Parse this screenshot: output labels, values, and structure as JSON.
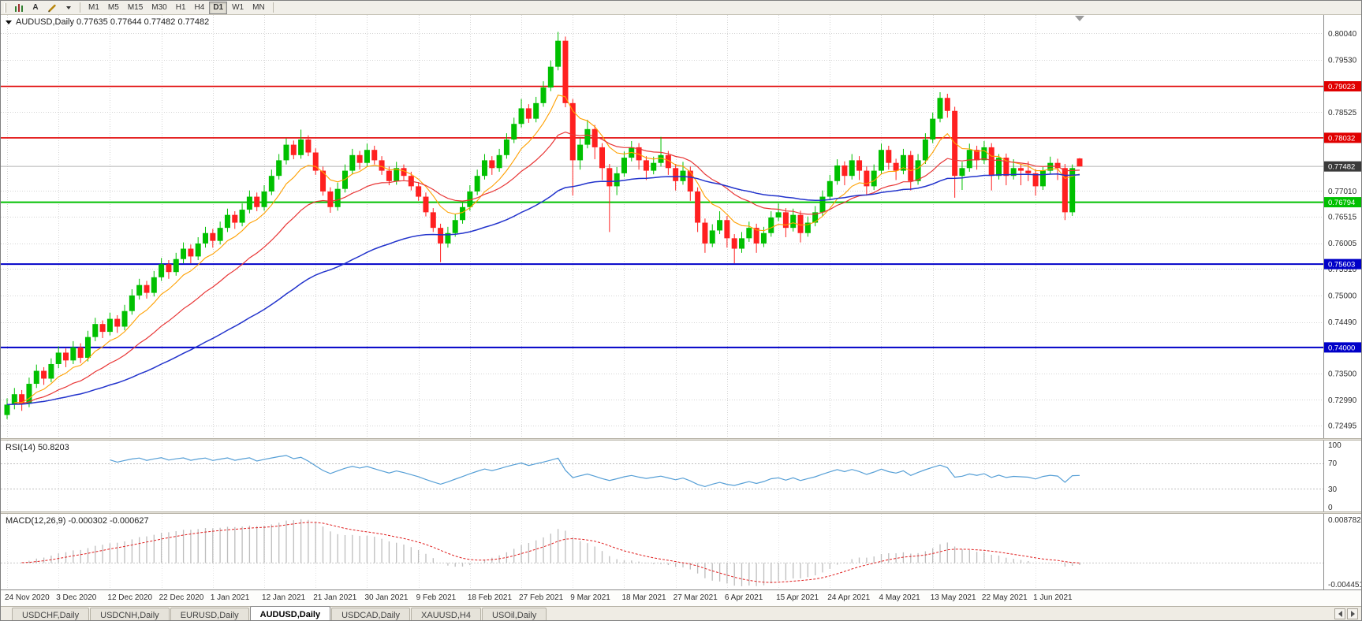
{
  "toolbar": {
    "text_tool_label": "A",
    "timeframes": [
      "M1",
      "M5",
      "M15",
      "M30",
      "H1",
      "H4",
      "D1",
      "W1",
      "MN"
    ],
    "active_timeframe": "D1",
    "icons": [
      "bar-chart-icon",
      "pencil-icon",
      "caret-down-icon"
    ]
  },
  "chart": {
    "symbol_line": "AUDUSD,Daily 0.77635 0.77644 0.77482 0.77482",
    "grid_labels": [
      "0.80040",
      "0.79530",
      "0.78525",
      "0.77010",
      "0.76515",
      "0.76005",
      "0.75510",
      "0.75000",
      "0.74490",
      "0.73500",
      "0.72990",
      "0.72495"
    ],
    "levels": [
      {
        "name": "resistance-line-upper",
        "label": "0.79023",
        "value": 0.79023,
        "color": "#e00000",
        "type": "resistance"
      },
      {
        "name": "resistance-line-lower",
        "label": "0.78032",
        "value": 0.78032,
        "color": "#e00000",
        "type": "resistance"
      },
      {
        "name": "current-price-line",
        "label": "0.77482",
        "value": 0.77482,
        "color": "#3a3a3a",
        "type": "price"
      },
      {
        "name": "support-line-green",
        "label": "0.76794",
        "value": 0.76794,
        "color": "#00c000",
        "type": "support"
      },
      {
        "name": "support-line-blue-upper",
        "label": "0.75603",
        "value": 0.75603,
        "color": "#0000c8",
        "type": "support"
      },
      {
        "name": "support-line-blue-lower",
        "label": "0.74000",
        "value": 0.74,
        "color": "#0000c8",
        "type": "support"
      }
    ],
    "colors": {
      "bull": "#00c000",
      "bear": "#ff2020",
      "ma_fast": "#ffa000",
      "ma_mid": "#e83535",
      "ma_slow": "#2233cc",
      "grid": "#d4d4d4"
    }
  },
  "chart_data": {
    "type": "candlestick",
    "title": "AUDUSD,Daily",
    "price_range": [
      0.723,
      0.8035
    ],
    "x_labels": [
      "24 Nov 2020",
      "3 Dec 2020",
      "12 Dec 2020",
      "22 Dec 2020",
      "1 Jan 2021",
      "12 Jan 2021",
      "21 Jan 2021",
      "30 Jan 2021",
      "9 Feb 2021",
      "18 Feb 2021",
      "27 Feb 2021",
      "9 Mar 2021",
      "18 Mar 2021",
      "27 Mar 2021",
      "6 Apr 2021",
      "15 Apr 2021",
      "24 Apr 2021",
      "4 May 2021",
      "13 May 2021",
      "22 May 2021",
      "1 Jun 2021"
    ],
    "candles": [
      [
        0.727,
        0.7302,
        0.7262,
        0.729
      ],
      [
        0.729,
        0.7322,
        0.7281,
        0.731
      ],
      [
        0.731,
        0.7318,
        0.7278,
        0.7292
      ],
      [
        0.7292,
        0.7342,
        0.7285,
        0.733
      ],
      [
        0.733,
        0.7367,
        0.7322,
        0.7355
      ],
      [
        0.7355,
        0.7362,
        0.7328,
        0.734
      ],
      [
        0.734,
        0.7379,
        0.7333,
        0.7368
      ],
      [
        0.7368,
        0.7402,
        0.736,
        0.739
      ],
      [
        0.739,
        0.7398,
        0.7362,
        0.7375
      ],
      [
        0.7375,
        0.7412,
        0.7368,
        0.74
      ],
      [
        0.74,
        0.7408,
        0.737,
        0.738
      ],
      [
        0.738,
        0.7432,
        0.7373,
        0.742
      ],
      [
        0.742,
        0.7457,
        0.7412,
        0.7445
      ],
      [
        0.7445,
        0.7452,
        0.7418,
        0.743
      ],
      [
        0.743,
        0.7467,
        0.7423,
        0.7455
      ],
      [
        0.7455,
        0.7462,
        0.7428,
        0.744
      ],
      [
        0.744,
        0.7482,
        0.7433,
        0.747
      ],
      [
        0.747,
        0.7512,
        0.7463,
        0.75
      ],
      [
        0.75,
        0.7532,
        0.7492,
        0.752
      ],
      [
        0.752,
        0.7528,
        0.7494,
        0.7505
      ],
      [
        0.7505,
        0.7547,
        0.7498,
        0.7535
      ],
      [
        0.7535,
        0.7572,
        0.7528,
        0.756
      ],
      [
        0.756,
        0.7568,
        0.7532,
        0.7545
      ],
      [
        0.7545,
        0.7582,
        0.7538,
        0.757
      ],
      [
        0.757,
        0.7602,
        0.7562,
        0.759
      ],
      [
        0.759,
        0.7598,
        0.7562,
        0.7575
      ],
      [
        0.7575,
        0.7612,
        0.7568,
        0.76
      ],
      [
        0.76,
        0.7632,
        0.7592,
        0.762
      ],
      [
        0.762,
        0.7628,
        0.7592,
        0.7605
      ],
      [
        0.7605,
        0.7642,
        0.7598,
        0.763
      ],
      [
        0.763,
        0.7667,
        0.7622,
        0.7655
      ],
      [
        0.7655,
        0.7662,
        0.7628,
        0.764
      ],
      [
        0.764,
        0.7677,
        0.7633,
        0.7665
      ],
      [
        0.7665,
        0.7702,
        0.7658,
        0.769
      ],
      [
        0.769,
        0.7698,
        0.7662,
        0.767
      ],
      [
        0.767,
        0.7712,
        0.7663,
        0.77
      ],
      [
        0.77,
        0.7742,
        0.7693,
        0.773
      ],
      [
        0.773,
        0.7772,
        0.7723,
        0.776
      ],
      [
        0.776,
        0.7802,
        0.7752,
        0.779
      ],
      [
        0.779,
        0.7798,
        0.7762,
        0.777
      ],
      [
        0.777,
        0.7819,
        0.7763,
        0.78
      ],
      [
        0.78,
        0.7808,
        0.7768,
        0.7775
      ],
      [
        0.7775,
        0.7783,
        0.7732,
        0.774
      ],
      [
        0.774,
        0.7748,
        0.7692,
        0.77
      ],
      [
        0.77,
        0.7708,
        0.7659,
        0.767
      ],
      [
        0.767,
        0.7717,
        0.7663,
        0.7705
      ],
      [
        0.7705,
        0.7752,
        0.7698,
        0.774
      ],
      [
        0.774,
        0.7782,
        0.7733,
        0.777
      ],
      [
        0.777,
        0.7778,
        0.7742,
        0.7755
      ],
      [
        0.7755,
        0.7792,
        0.7748,
        0.778
      ],
      [
        0.778,
        0.7788,
        0.7752,
        0.776
      ],
      [
        0.776,
        0.7768,
        0.7732,
        0.774
      ],
      [
        0.774,
        0.7748,
        0.7712,
        0.772
      ],
      [
        0.772,
        0.7757,
        0.7713,
        0.7745
      ],
      [
        0.7745,
        0.7752,
        0.7722,
        0.773
      ],
      [
        0.773,
        0.7738,
        0.7702,
        0.771
      ],
      [
        0.771,
        0.7718,
        0.7682,
        0.769
      ],
      [
        0.769,
        0.7698,
        0.7652,
        0.766
      ],
      [
        0.766,
        0.7668,
        0.7622,
        0.763
      ],
      [
        0.763,
        0.7638,
        0.7564,
        0.76
      ],
      [
        0.76,
        0.7632,
        0.7592,
        0.762
      ],
      [
        0.762,
        0.7657,
        0.7613,
        0.7645
      ],
      [
        0.7645,
        0.7682,
        0.7638,
        0.767
      ],
      [
        0.767,
        0.7712,
        0.7663,
        0.77
      ],
      [
        0.77,
        0.7742,
        0.7693,
        0.773
      ],
      [
        0.773,
        0.7772,
        0.7723,
        0.776
      ],
      [
        0.776,
        0.7768,
        0.7732,
        0.7745
      ],
      [
        0.7745,
        0.7782,
        0.7738,
        0.777
      ],
      [
        0.777,
        0.7812,
        0.7763,
        0.78
      ],
      [
        0.78,
        0.7842,
        0.7793,
        0.783
      ],
      [
        0.783,
        0.7878,
        0.7823,
        0.786
      ],
      [
        0.786,
        0.7868,
        0.7832,
        0.784
      ],
      [
        0.784,
        0.7882,
        0.7833,
        0.787
      ],
      [
        0.787,
        0.7912,
        0.7863,
        0.79
      ],
      [
        0.79,
        0.7952,
        0.7893,
        0.794
      ],
      [
        0.794,
        0.8007,
        0.7933,
        0.799
      ],
      [
        0.799,
        0.7998,
        0.7862,
        0.787
      ],
      [
        0.787,
        0.7878,
        0.7692,
        0.776
      ],
      [
        0.776,
        0.7802,
        0.7742,
        0.779
      ],
      [
        0.779,
        0.7838,
        0.7783,
        0.782
      ],
      [
        0.782,
        0.7828,
        0.7762,
        0.7785
      ],
      [
        0.7785,
        0.7793,
        0.7722,
        0.7745
      ],
      [
        0.7745,
        0.7753,
        0.7622,
        0.771
      ],
      [
        0.771,
        0.7747,
        0.7693,
        0.7735
      ],
      [
        0.7735,
        0.7777,
        0.7728,
        0.7765
      ],
      [
        0.7765,
        0.7797,
        0.7758,
        0.7785
      ],
      [
        0.7785,
        0.7793,
        0.7742,
        0.776
      ],
      [
        0.776,
        0.7768,
        0.7722,
        0.774
      ],
      [
        0.774,
        0.7767,
        0.7733,
        0.7755
      ],
      [
        0.7755,
        0.7805,
        0.7748,
        0.777
      ],
      [
        0.777,
        0.7778,
        0.7732,
        0.7745
      ],
      [
        0.7745,
        0.7753,
        0.7702,
        0.772
      ],
      [
        0.772,
        0.7757,
        0.7713,
        0.774
      ],
      [
        0.774,
        0.7748,
        0.7682,
        0.77
      ],
      [
        0.77,
        0.7708,
        0.7622,
        0.764
      ],
      [
        0.764,
        0.7648,
        0.7582,
        0.76
      ],
      [
        0.76,
        0.7637,
        0.7593,
        0.7625
      ],
      [
        0.7625,
        0.7662,
        0.7618,
        0.7645
      ],
      [
        0.7645,
        0.7653,
        0.7592,
        0.761
      ],
      [
        0.761,
        0.7618,
        0.7562,
        0.759
      ],
      [
        0.759,
        0.7622,
        0.7582,
        0.761
      ],
      [
        0.761,
        0.7642,
        0.7603,
        0.763
      ],
      [
        0.763,
        0.7638,
        0.7582,
        0.76
      ],
      [
        0.76,
        0.7632,
        0.7593,
        0.762
      ],
      [
        0.762,
        0.7662,
        0.7613,
        0.765
      ],
      [
        0.765,
        0.7677,
        0.7643,
        0.766
      ],
      [
        0.766,
        0.7668,
        0.7612,
        0.763
      ],
      [
        0.763,
        0.7667,
        0.7623,
        0.7655
      ],
      [
        0.7655,
        0.7663,
        0.7602,
        0.762
      ],
      [
        0.762,
        0.7652,
        0.7613,
        0.764
      ],
      [
        0.764,
        0.7672,
        0.7633,
        0.766
      ],
      [
        0.766,
        0.7702,
        0.7653,
        0.769
      ],
      [
        0.769,
        0.7732,
        0.7683,
        0.772
      ],
      [
        0.772,
        0.7762,
        0.7713,
        0.775
      ],
      [
        0.775,
        0.7758,
        0.7712,
        0.773
      ],
      [
        0.773,
        0.7772,
        0.7723,
        0.776
      ],
      [
        0.776,
        0.7768,
        0.7722,
        0.774
      ],
      [
        0.774,
        0.7748,
        0.7692,
        0.771
      ],
      [
        0.771,
        0.7752,
        0.7703,
        0.774
      ],
      [
        0.774,
        0.7792,
        0.7733,
        0.778
      ],
      [
        0.778,
        0.7788,
        0.7742,
        0.7755
      ],
      [
        0.7755,
        0.7763,
        0.7722,
        0.774
      ],
      [
        0.774,
        0.7782,
        0.7733,
        0.777
      ],
      [
        0.777,
        0.7778,
        0.7702,
        0.772
      ],
      [
        0.772,
        0.7772,
        0.7713,
        0.776
      ],
      [
        0.776,
        0.7812,
        0.7753,
        0.78
      ],
      [
        0.78,
        0.7852,
        0.7793,
        0.784
      ],
      [
        0.784,
        0.7891,
        0.7833,
        0.788
      ],
      [
        0.788,
        0.7888,
        0.7842,
        0.7855
      ],
      [
        0.7855,
        0.7863,
        0.7688,
        0.773
      ],
      [
        0.773,
        0.7757,
        0.7703,
        0.7745
      ],
      [
        0.7745,
        0.7792,
        0.7738,
        0.778
      ],
      [
        0.778,
        0.7788,
        0.7742,
        0.776
      ],
      [
        0.776,
        0.7797,
        0.7753,
        0.7785
      ],
      [
        0.7785,
        0.7793,
        0.7702,
        0.773
      ],
      [
        0.773,
        0.7772,
        0.7723,
        0.7765
      ],
      [
        0.7765,
        0.7773,
        0.7712,
        0.773
      ],
      [
        0.773,
        0.7762,
        0.7723,
        0.7745
      ],
      [
        0.7745,
        0.7753,
        0.7712,
        0.774
      ],
      [
        0.774,
        0.7758,
        0.772,
        0.7735
      ],
      [
        0.7735,
        0.7743,
        0.7692,
        0.771
      ],
      [
        0.771,
        0.7747,
        0.7703,
        0.774
      ],
      [
        0.774,
        0.7767,
        0.7733,
        0.7755
      ],
      [
        0.7755,
        0.7763,
        0.7722,
        0.7745
      ],
      [
        0.7745,
        0.7753,
        0.7645,
        0.766
      ],
      [
        0.766,
        0.7752,
        0.7653,
        0.7745
      ],
      [
        0.77635,
        0.77644,
        0.77482,
        0.77482
      ]
    ],
    "overlays": [
      {
        "name": "ma-fast",
        "color": "#ffa000"
      },
      {
        "name": "ma-mid",
        "color": "#e83535"
      },
      {
        "name": "ma-slow",
        "color": "#2233cc"
      }
    ]
  },
  "rsi": {
    "label": "RSI(14) 50.8203",
    "color": "#569fd6",
    "levels": [
      70,
      30
    ],
    "scale": [
      "100",
      "70",
      "30",
      "0"
    ]
  },
  "macd": {
    "label": "MACD(12,26,9) -0.000302 -0.000627",
    "scale_top": "0.008782",
    "scale_bottom": "-0.004451",
    "scale_max": 0.008782,
    "scale_min": -0.004451,
    "histogram_color": "#bdbdbd",
    "signal_color": "#e02020"
  },
  "tabs": {
    "items": [
      "USDCHF,Daily",
      "USDCNH,Daily",
      "EURUSD,Daily",
      "AUDUSD,Daily",
      "USDCAD,Daily",
      "XAUUSD,H4",
      "USOil,Daily"
    ],
    "active": "AUDUSD,Daily"
  }
}
